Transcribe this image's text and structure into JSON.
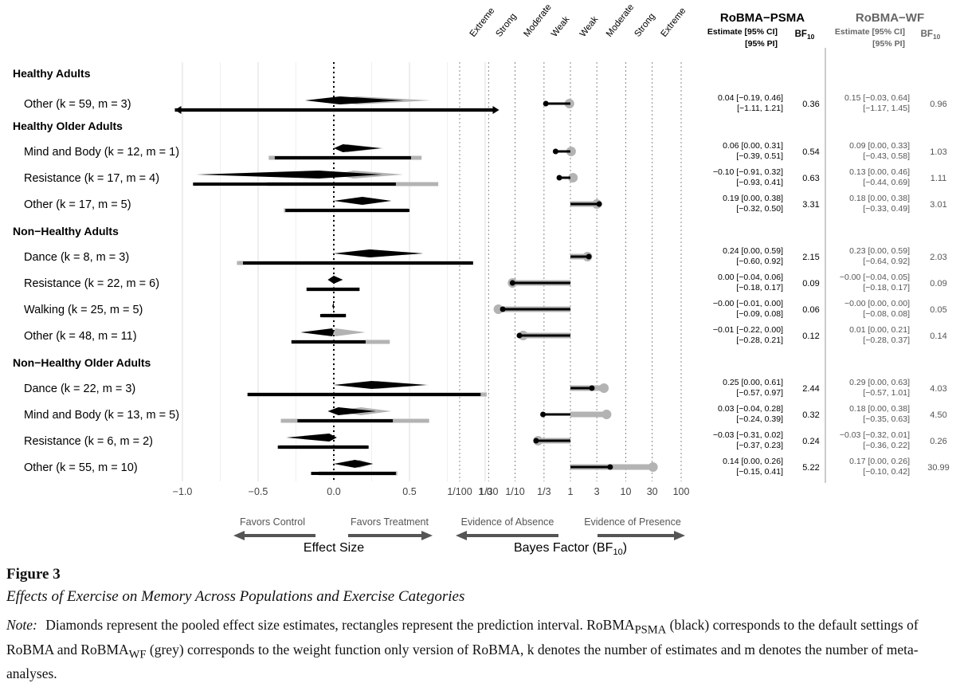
{
  "chart_data": {
    "type": "forest",
    "title_psma": "RoBMA−PSMA",
    "title_wf": "RoBMA−WF",
    "estimate_header_1": "Estimate [95% CI]",
    "estimate_header_2": "[95% PI]",
    "bf_header": "BF",
    "bf_header_sub": "10",
    "effect_axis": {
      "label": "Effect Size",
      "range": [
        -1.0,
        1.0
      ],
      "ticks": [
        "−1.0",
        "−0.5",
        "0.0",
        "0.5",
        "1.0"
      ],
      "tick_values": [
        -1.0,
        -0.5,
        0.0,
        0.5,
        1.0
      ],
      "left_label": "Favors Control",
      "right_label": "Favors Treatment"
    },
    "bf_axis": {
      "label": "Bayes Factor (BF",
      "label_sub": "10",
      "label_end": ")",
      "ticks": [
        "1/100",
        "1/30",
        "1/10",
        "1/3",
        "1",
        "3",
        "10",
        "30",
        "100"
      ],
      "tick_values": [
        0.01,
        0.0333,
        0.1,
        0.3333,
        1,
        3,
        10,
        30,
        100
      ],
      "categories": [
        "Extreme",
        "Strong",
        "Moderate",
        "Weak",
        "Weak",
        "Moderate",
        "Strong",
        "Extreme"
      ],
      "left_label": "Evidence of Absence",
      "right_label": "Evidence of Presence"
    },
    "groups": [
      {
        "name": "Healthy Adults",
        "rows": [
          {
            "label": "Other (k = 59, m = 3)",
            "psma": {
              "est": 0.04,
              "ci": [
                -0.19,
                0.46
              ],
              "pi": [
                -1.11,
                1.21
              ],
              "bf": 0.36,
              "ci_text": "0.04 [−0.19, 0.46]",
              "pi_text": "[−1.11, 1.21]",
              "bf_text": "0.36"
            },
            "wf": {
              "est": 0.15,
              "ci": [
                -0.03,
                0.64
              ],
              "pi": [
                -1.17,
                1.45
              ],
              "bf": 0.96,
              "ci_text": "0.15 [−0.03, 0.64]",
              "pi_text": "[−1.17, 1.45]",
              "bf_text": "0.96"
            }
          }
        ]
      },
      {
        "name": "Healthy Older Adults",
        "rows": [
          {
            "label": "Mind and Body (k = 12, m = 1)",
            "psma": {
              "est": 0.06,
              "ci": [
                0.0,
                0.31
              ],
              "pi": [
                -0.39,
                0.51
              ],
              "bf": 0.54,
              "ci_text": "0.06 [0.00, 0.31]",
              "pi_text": "[−0.39, 0.51]",
              "bf_text": "0.54"
            },
            "wf": {
              "est": 0.09,
              "ci": [
                0.0,
                0.33
              ],
              "pi": [
                -0.43,
                0.58
              ],
              "bf": 1.03,
              "ci_text": "0.09 [0.00, 0.33]",
              "pi_text": "[−0.43, 0.58]",
              "bf_text": "1.03"
            }
          },
          {
            "label": "Resistance (k = 17, m = 4)",
            "psma": {
              "est": -0.1,
              "ci": [
                -0.91,
                0.32
              ],
              "pi": [
                -0.93,
                0.41
              ],
              "bf": 0.63,
              "ci_text": "−0.10 [−0.91, 0.32]",
              "pi_text": "[−0.93, 0.41]",
              "bf_text": "0.63"
            },
            "wf": {
              "est": 0.13,
              "ci": [
                0.0,
                0.46
              ],
              "pi": [
                -0.44,
                0.69
              ],
              "bf": 1.11,
              "ci_text": "0.13 [0.00, 0.46]",
              "pi_text": "[−0.44, 0.69]",
              "bf_text": "1.11"
            }
          },
          {
            "label": "Other (k = 17, m = 5)",
            "psma": {
              "est": 0.19,
              "ci": [
                0.0,
                0.38
              ],
              "pi": [
                -0.32,
                0.5
              ],
              "bf": 3.31,
              "ci_text": "0.19 [0.00, 0.38]",
              "pi_text": "[−0.32, 0.50]",
              "bf_text": "3.31"
            },
            "wf": {
              "est": 0.18,
              "ci": [
                0.0,
                0.38
              ],
              "pi": [
                -0.33,
                0.49
              ],
              "bf": 3.01,
              "ci_text": "0.18 [0.00, 0.38]",
              "pi_text": "[−0.33, 0.49]",
              "bf_text": "3.01"
            }
          }
        ]
      },
      {
        "name": "Non−Healthy Adults",
        "rows": [
          {
            "label": "Dance (k = 8, m = 3)",
            "psma": {
              "est": 0.24,
              "ci": [
                0.0,
                0.59
              ],
              "pi": [
                -0.6,
                0.92
              ],
              "bf": 2.15,
              "ci_text": "0.24 [0.00, 0.59]",
              "pi_text": "[−0.60, 0.92]",
              "bf_text": "2.15"
            },
            "wf": {
              "est": 0.23,
              "ci": [
                0.0,
                0.59
              ],
              "pi": [
                -0.64,
                0.92
              ],
              "bf": 2.03,
              "ci_text": "0.23 [0.00, 0.59]",
              "pi_text": "[−0.64, 0.92]",
              "bf_text": "2.03"
            }
          },
          {
            "label": "Resistance (k = 22, m = 6)",
            "psma": {
              "est": 0.0,
              "ci": [
                -0.04,
                0.06
              ],
              "pi": [
                -0.18,
                0.17
              ],
              "bf": 0.09,
              "ci_text": "0.00 [−0.04, 0.06]",
              "pi_text": "[−0.18, 0.17]",
              "bf_text": "0.09"
            },
            "wf": {
              "est": -0.0,
              "ci": [
                -0.04,
                0.05
              ],
              "pi": [
                -0.18,
                0.17
              ],
              "bf": 0.09,
              "ci_text": "−0.00 [−0.04, 0.05]",
              "pi_text": "[−0.18, 0.17]",
              "bf_text": "0.09"
            }
          },
          {
            "label": "Walking (k = 25, m = 5)",
            "psma": {
              "est": -0.0,
              "ci": [
                -0.01,
                0.0
              ],
              "pi": [
                -0.09,
                0.08
              ],
              "bf": 0.06,
              "ci_text": "−0.00 [−0.01, 0.00]",
              "pi_text": "[−0.09, 0.08]",
              "bf_text": "0.06"
            },
            "wf": {
              "est": -0.0,
              "ci": [
                0.0,
                0.0
              ],
              "pi": [
                -0.08,
                0.08
              ],
              "bf": 0.05,
              "ci_text": "−0.00 [0.00, 0.00]",
              "pi_text": "[−0.08, 0.08]",
              "bf_text": "0.05"
            }
          },
          {
            "label": "Other (k = 48, m = 11)",
            "psma": {
              "est": -0.01,
              "ci": [
                -0.22,
                0.0
              ],
              "pi": [
                -0.28,
                0.21
              ],
              "bf": 0.12,
              "ci_text": "−0.01 [−0.22, 0.00]",
              "pi_text": "[−0.28, 0.21]",
              "bf_text": "0.12"
            },
            "wf": {
              "est": 0.01,
              "ci": [
                0.0,
                0.21
              ],
              "pi": [
                -0.28,
                0.37
              ],
              "bf": 0.14,
              "ci_text": "0.01 [0.00, 0.21]",
              "pi_text": "[−0.28, 0.37]",
              "bf_text": "0.14"
            }
          }
        ]
      },
      {
        "name": "Non−Healthy Older Adults",
        "rows": [
          {
            "label": "Dance (k = 22, m = 3)",
            "psma": {
              "est": 0.25,
              "ci": [
                0.0,
                0.61
              ],
              "pi": [
                -0.57,
                0.97
              ],
              "bf": 2.44,
              "ci_text": "0.25 [0.00, 0.61]",
              "pi_text": "[−0.57, 0.97]",
              "bf_text": "2.44"
            },
            "wf": {
              "est": 0.29,
              "ci": [
                0.0,
                0.63
              ],
              "pi": [
                -0.57,
                1.01
              ],
              "bf": 4.03,
              "ci_text": "0.29 [0.00, 0.63]",
              "pi_text": "[−0.57, 1.01]",
              "bf_text": "4.03"
            }
          },
          {
            "label": "Mind and Body (k = 13, m = 5)",
            "psma": {
              "est": 0.03,
              "ci": [
                -0.04,
                0.28
              ],
              "pi": [
                -0.24,
                0.39
              ],
              "bf": 0.32,
              "ci_text": "0.03 [−0.04, 0.28]",
              "pi_text": "[−0.24, 0.39]",
              "bf_text": "0.32"
            },
            "wf": {
              "est": 0.18,
              "ci": [
                0.0,
                0.38
              ],
              "pi": [
                -0.35,
                0.63
              ],
              "bf": 4.5,
              "ci_text": "0.18 [0.00, 0.38]",
              "pi_text": "[−0.35, 0.63]",
              "bf_text": "4.50"
            }
          },
          {
            "label": "Resistance (k = 6, m = 2)",
            "psma": {
              "est": -0.03,
              "ci": [
                -0.31,
                0.02
              ],
              "pi": [
                -0.37,
                0.23
              ],
              "bf": 0.24,
              "ci_text": "−0.03 [−0.31, 0.02]",
              "pi_text": "[−0.37, 0.23]",
              "bf_text": "0.24"
            },
            "wf": {
              "est": -0.03,
              "ci": [
                -0.32,
                0.01
              ],
              "pi": [
                -0.36,
                0.22
              ],
              "bf": 0.26,
              "ci_text": "−0.03 [−0.32, 0.01]",
              "pi_text": "[−0.36, 0.22]",
              "bf_text": "0.26"
            }
          },
          {
            "label": "Other (k = 55, m = 10)",
            "psma": {
              "est": 0.14,
              "ci": [
                0.0,
                0.26
              ],
              "pi": [
                -0.15,
                0.41
              ],
              "bf": 5.22,
              "ci_text": "0.14 [0.00, 0.26]",
              "pi_text": "[−0.15, 0.41]",
              "bf_text": "5.22"
            },
            "wf": {
              "est": 0.17,
              "ci": [
                0.0,
                0.26
              ],
              "pi": [
                -0.1,
                0.42
              ],
              "bf": 30.99,
              "ci_text": "0.17 [0.00, 0.26]",
              "pi_text": "[−0.10, 0.42]",
              "bf_text": "30.99"
            }
          }
        ]
      }
    ],
    "colors": {
      "psma": "#000000",
      "wf": "#b3b3b3",
      "grid": "#dedede",
      "arrow": "#555555"
    }
  },
  "caption": {
    "figure_label": "Figure 3",
    "subtitle": "Effects of Exercise on Memory Across Populations and Exercise Categories",
    "note_label": "Note:",
    "note_p1": "Diamonds represent the pooled effect size estimates, rectangles represent the prediction interval. RoBMA",
    "note_sub1": "PSMA",
    "note_p2": " (black) corresponds to the default settings of RoBMA and RoBMA",
    "note_sub2": "WF",
    "note_p3": " (grey) corresponds to the weight function only version of RoBMA, k denotes the number of estimates and m denotes the number of meta-analyses."
  }
}
